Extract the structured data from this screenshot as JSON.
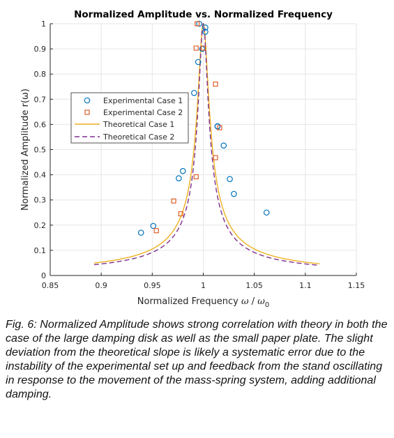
{
  "chart_data": {
    "type": "scatter",
    "title": "Normalized Amplitude vs. Normalized Frequency",
    "xlabel_text": "Normalized Frequency ",
    "xlabel_omega": "ω",
    "xlabel_slash": " / ",
    "xlabel_sub": "0",
    "ylabel": "Normalized Amplitude r(ω)",
    "xlim": [
      0.85,
      1.15
    ],
    "ylim": [
      0,
      1
    ],
    "xticks": [
      "0.85",
      "0.9",
      "0.95",
      "1",
      "1.05",
      "1.1",
      "1.15"
    ],
    "yticks": [
      "0",
      "0.1",
      "0.2",
      "0.3",
      "0.4",
      "0.5",
      "0.6",
      "0.7",
      "0.8",
      "0.9",
      "1"
    ],
    "grid": true,
    "legend_position": "center-left",
    "series": [
      {
        "name": "Experimental Case 1",
        "kind": "marker",
        "marker": "circle",
        "color": "#0072BD",
        "points": [
          [
            0.939,
            0.17
          ],
          [
            0.951,
            0.197
          ],
          [
            0.976,
            0.386
          ],
          [
            0.98,
            0.415
          ],
          [
            0.991,
            0.725
          ],
          [
            0.995,
            0.848
          ],
          [
            0.996,
            1.0
          ],
          [
            0.999,
            0.9
          ],
          [
            1.002,
            0.985
          ],
          [
            1.002,
            0.968
          ],
          [
            1.014,
            0.592
          ],
          [
            1.014,
            0.593
          ],
          [
            1.02,
            0.516
          ],
          [
            1.026,
            0.383
          ],
          [
            1.03,
            0.324
          ],
          [
            1.062,
            0.25
          ]
        ]
      },
      {
        "name": "Experimental Case 2",
        "kind": "marker",
        "marker": "square",
        "color": "#D95319",
        "points": [
          [
            0.954,
            0.178
          ],
          [
            0.971,
            0.296
          ],
          [
            0.978,
            0.245
          ],
          [
            0.993,
            0.392
          ],
          [
            0.993,
            0.903
          ],
          [
            0.994,
            1.0
          ],
          [
            1.0,
            0.903
          ],
          [
            1.012,
            0.76
          ],
          [
            1.012,
            0.468
          ],
          [
            1.016,
            0.587
          ]
        ]
      },
      {
        "name": "Theoretical Case 1",
        "kind": "line",
        "dash": "solid",
        "color": "#EDB120",
        "damping_q": 0.0053,
        "x_range": [
          0.893,
          1.114
        ]
      },
      {
        "name": "Theoretical Case 2",
        "kind": "line",
        "dash": "dashed",
        "color": "#7E2F8E",
        "damping_q": 0.0046,
        "x_range": [
          0.893,
          1.114
        ]
      }
    ]
  },
  "caption": "Fig. 6: Normalized Amplitude shows strong correlation with theory in both the case of the large damping disk as well as the small paper plate. The slight deviation from the theoretical slope is likely a systematic error due to the instability of the experimental set up and feedback from the stand oscillating in response to the movement of the mass-spring system, adding additional damping."
}
